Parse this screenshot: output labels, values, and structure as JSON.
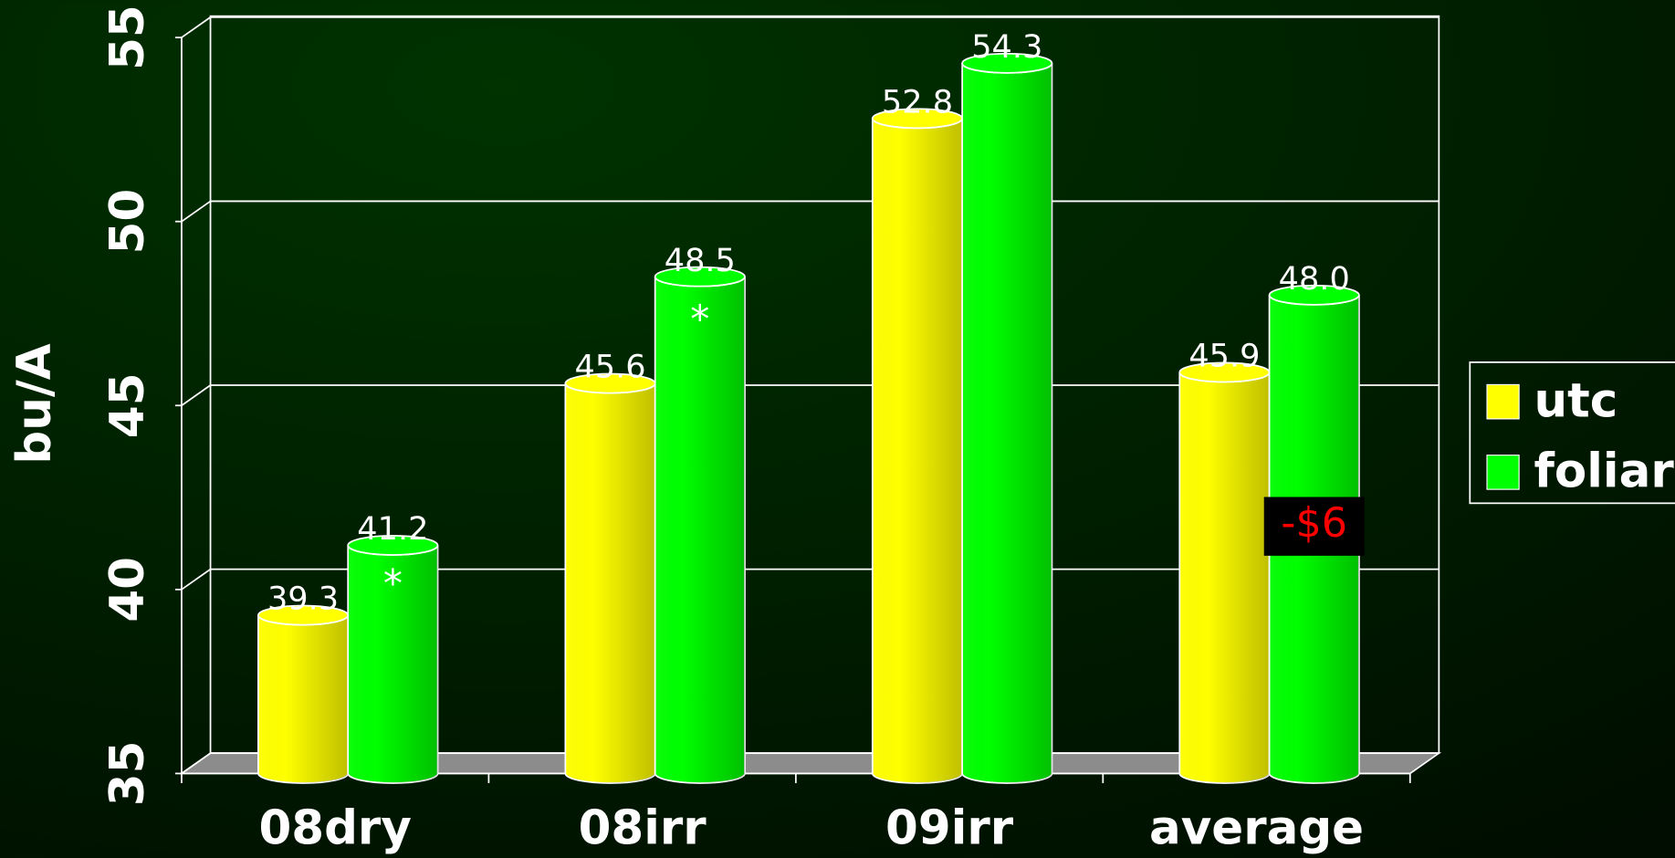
{
  "chart_data": {
    "type": "bar",
    "categories": [
      "08dry",
      "08irr",
      "09irr",
      "average"
    ],
    "series": [
      {
        "name": "utc",
        "color": "#ffff00",
        "values": [
          39.3,
          45.6,
          52.8,
          45.9
        ],
        "value_labels": [
          "39.3",
          "45.6",
          "52.8",
          "45.9"
        ]
      },
      {
        "name": "foliar",
        "color": "#00ff00",
        "values": [
          41.2,
          48.5,
          54.3,
          48.0
        ],
        "value_labels": [
          "41.2",
          "48.5",
          "54.3",
          "48.0"
        ]
      }
    ],
    "y_label": "bu/A",
    "ylim": [
      35,
      55
    ],
    "yticks": [
      35,
      40,
      45,
      50,
      55
    ],
    "grid": true,
    "legend": "right",
    "annotations": [
      {
        "text": "*"
      },
      {
        "text": "*"
      },
      {
        "text": "-$6"
      }
    ]
  }
}
